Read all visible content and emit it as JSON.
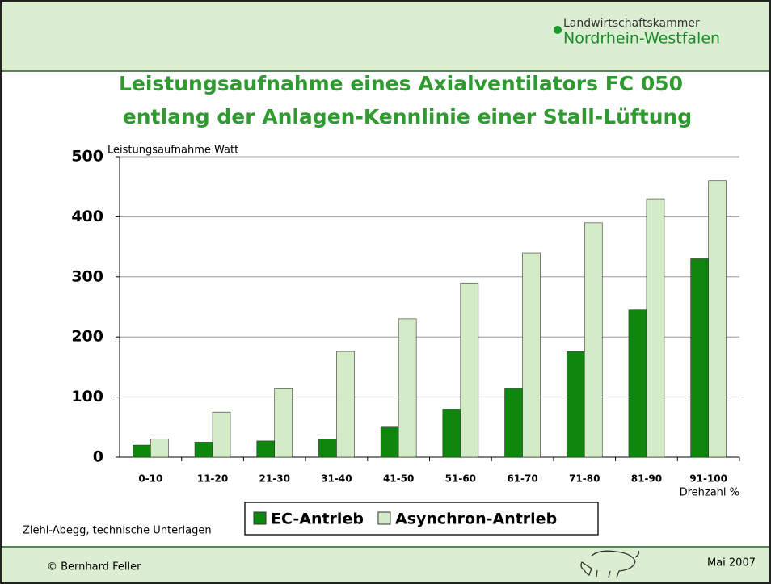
{
  "header": {
    "logo_line1": "Landwirtschaftskammer",
    "logo_line2": "Nordrhein-Westfalen"
  },
  "chart_data": {
    "type": "bar",
    "title": [
      "Leistungsaufnahme eines Axialventilators FC 050",
      "entlang der Anlagen-Kennlinie einer Stall-Lüftung"
    ],
    "y_label": "Leistungsaufnahme Watt",
    "x_label": "Drehzahl %",
    "categories": [
      "0-10",
      "11-20",
      "21-30",
      "31-40",
      "41-50",
      "51-60",
      "61-70",
      "71-80",
      "81-90",
      "91-100"
    ],
    "series": [
      {
        "name": "EC-Antrieb",
        "color": "#0f870f",
        "values": [
          20,
          25,
          27,
          30,
          50,
          80,
          115,
          176,
          245,
          330
        ]
      },
      {
        "name": "Asynchron-Antrieb",
        "color": "#d3ebc6",
        "values": [
          30,
          75,
          115,
          176,
          230,
          290,
          340,
          390,
          430,
          460
        ]
      }
    ],
    "ylim": [
      0,
      500
    ],
    "yticks": [
      0,
      100,
      200,
      300,
      400,
      500
    ],
    "grid": true,
    "legend": "bottom"
  },
  "source": "Ziehl-Abegg, technische Unterlagen",
  "footer": {
    "author": "© Bernhard Feller",
    "date": "Mai 2007"
  }
}
